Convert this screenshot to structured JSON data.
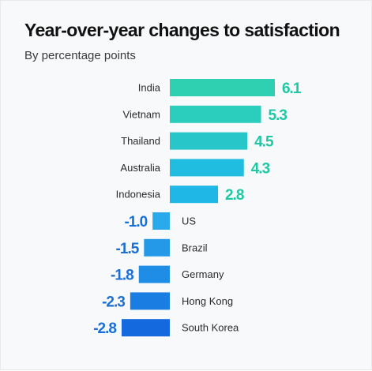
{
  "title": "Year-over-year changes to satisfaction",
  "subtitle": "By percentage points",
  "colors": {
    "positive": [
      "#2fd0b2",
      "#2bcdbd",
      "#27c6c8",
      "#21bde0",
      "#1fb8e6"
    ],
    "negative": [
      "#2aa9ec",
      "#2399e8",
      "#1f8ce5",
      "#1a7de2",
      "#1569de"
    ],
    "positive_label": "#20c7a4",
    "negative_label": "#1a6fd6"
  },
  "chart_data": {
    "type": "bar",
    "orientation": "horizontal",
    "categories": [
      "India",
      "Vietnam",
      "Thailand",
      "Australia",
      "Indonesia",
      "US",
      "Brazil",
      "Germany",
      "Hong Kong",
      "South Korea"
    ],
    "values": [
      6.1,
      5.3,
      4.5,
      4.3,
      2.8,
      -1.0,
      -1.5,
      -1.8,
      -2.3,
      -2.8
    ],
    "value_labels": [
      "6.1",
      "5.3",
      "4.5",
      "4.3",
      "2.8",
      "-1.0",
      "-1.5",
      "-1.8",
      "-2.3",
      "-2.8"
    ],
    "title": "Year-over-year changes to satisfaction",
    "subtitle": "By percentage points",
    "xlabel": "",
    "ylabel": "",
    "grid": false,
    "legend": "none"
  }
}
